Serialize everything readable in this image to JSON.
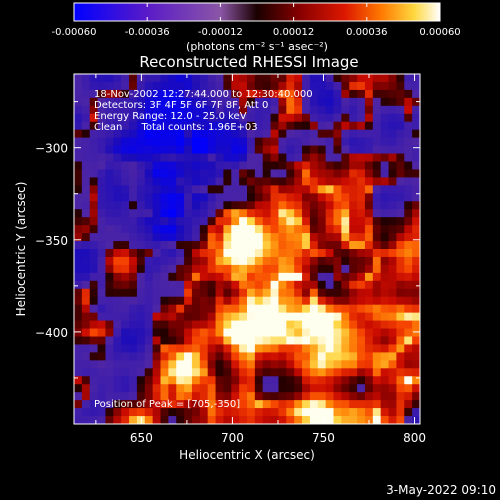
{
  "colorbar": {
    "tick_labels": [
      "-0.00060",
      "-0.00036",
      "-0.00012",
      "0.00012",
      "0.00036",
      "0.00060"
    ],
    "tick_values": [
      -0.0006,
      -0.00036,
      -0.00012,
      0.00012,
      0.00036,
      0.0006
    ],
    "range": [
      -0.0006,
      0.0006
    ],
    "units_label": "(photons cm⁻² s⁻¹ asec⁻²)"
  },
  "chart_data": {
    "type": "heatmap",
    "title": "Reconstructed RHESSI Image",
    "xlabel": "Heliocentric X (arcsec)",
    "ylabel": "Heliocentric Y (arcsec)",
    "xlim": [
      613,
      803
    ],
    "ylim": [
      -450,
      -260
    ],
    "x_ticks": [
      650,
      700,
      750,
      800
    ],
    "x_tick_labels": [
      "650",
      "700",
      "750",
      "800"
    ],
    "y_ticks": [
      -300,
      -350,
      -400
    ],
    "y_tick_labels": [
      "−300",
      "−350",
      "−400"
    ],
    "peak": [
      705,
      -350
    ],
    "annotations": [
      "18-Nov-2002 12:27:44.000 to 12:30:40.000",
      "Detectors: 3F 4F 5F 6F 7F 8F, Att 0",
      "Energy Range: 12.0 - 25.0 keV",
      "Clean      Total counts: 1.96E+03",
      "Position of Peak = [705,-350]"
    ]
  },
  "footer": {
    "timestamp": "3-May-2022 09:10"
  }
}
